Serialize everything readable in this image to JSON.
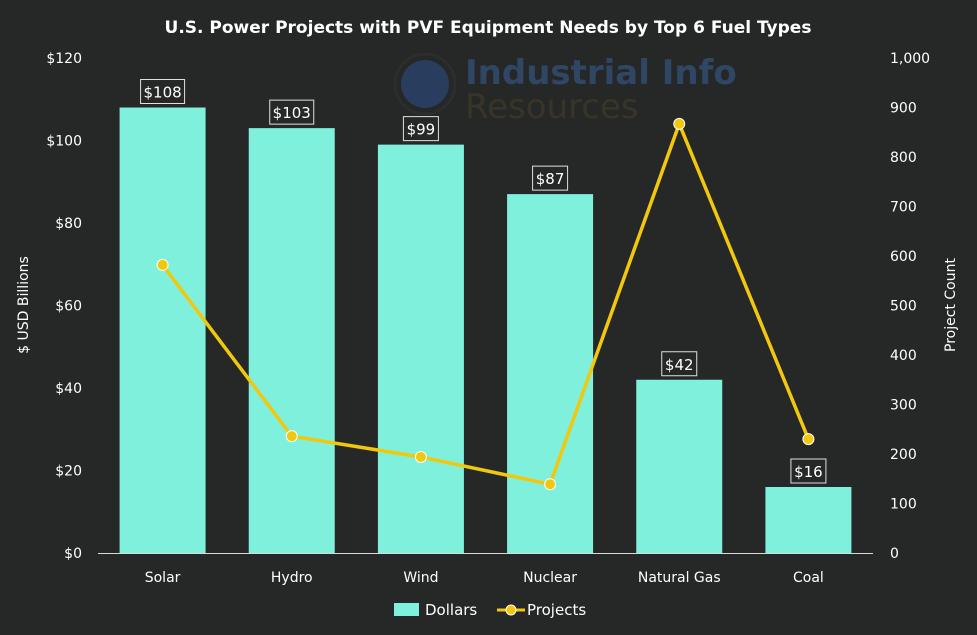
{
  "chart_data": {
    "type": "bar",
    "title": "U.S. Power Projects with PVF Equipment Needs by Top 6 Fuel Types",
    "categories": [
      "Solar",
      "Hydro",
      "Wind",
      "Nuclear",
      "Natural Gas",
      "Coal"
    ],
    "series": [
      {
        "name": "Dollars",
        "type": "bar",
        "axis": "left",
        "values": [
          108,
          103,
          99,
          87,
          42,
          16
        ],
        "data_labels": [
          "$108",
          "$103",
          "$99",
          "$87",
          "$42",
          "$16"
        ],
        "color": "#7ff0dc"
      },
      {
        "name": "Projects",
        "type": "line",
        "axis": "right",
        "values": [
          582,
          236,
          194,
          139,
          867,
          230
        ],
        "color": "#f2c80f"
      }
    ],
    "ylabel": "$ USD Billions",
    "ylim": [
      0,
      120
    ],
    "yticks": [
      "$0",
      "$20",
      "$40",
      "$60",
      "$80",
      "$100",
      "$120"
    ],
    "y2label": "Project Count",
    "y2lim": [
      0,
      1000
    ],
    "y2ticks": [
      "0",
      "100",
      "200",
      "300",
      "400",
      "500",
      "600",
      "700",
      "800",
      "900",
      "1,000"
    ],
    "grid": false,
    "legend": "bottom"
  },
  "watermark": "Industrial Info Resources"
}
